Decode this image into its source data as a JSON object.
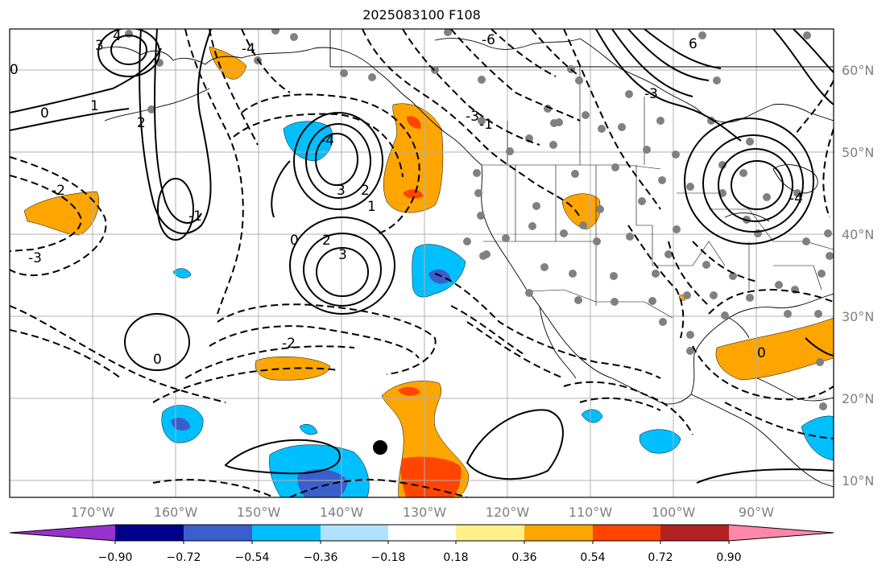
{
  "title": "2025083100 F108",
  "map": {
    "lon_labels": [
      "170°W",
      "160°W",
      "150°W",
      "140°W",
      "130°W",
      "120°W",
      "110°W",
      "100°W",
      "90°W"
    ],
    "lat_labels": [
      "60°N",
      "50°N",
      "40°N",
      "30°N",
      "20°N",
      "10°N"
    ],
    "grid": true,
    "contour_labels": [
      "0",
      "1",
      "2",
      "3",
      "4",
      "0",
      "-1",
      "-2",
      "-3",
      "-4",
      "-6",
      "6",
      "3",
      "2",
      "1",
      "0",
      "-1",
      "-2",
      "-3",
      "-4",
      "0",
      "2",
      "-4",
      "-3",
      "3",
      "0"
    ]
  },
  "colorbar": {
    "ticks": [
      "−0.90",
      "−0.72",
      "−0.54",
      "−0.36",
      "−0.18",
      "0.18",
      "0.36",
      "0.54",
      "0.72",
      "0.90"
    ],
    "colors": [
      "#9932cc",
      "#00008b",
      "#3a5fcd",
      "#00bfff",
      "#b0e2ff",
      "#ffffff",
      "#fff08a",
      "#ffa500",
      "#ff4500",
      "#b22222",
      "#ff88aa"
    ]
  },
  "colors": {
    "positive_fill": "#ffa500",
    "positive_core": "#ff4500",
    "negative_fill": "#00bfff",
    "negative_core": "#3a5fcd",
    "grid": "#b0b0b0",
    "station_dot": "#808080"
  }
}
